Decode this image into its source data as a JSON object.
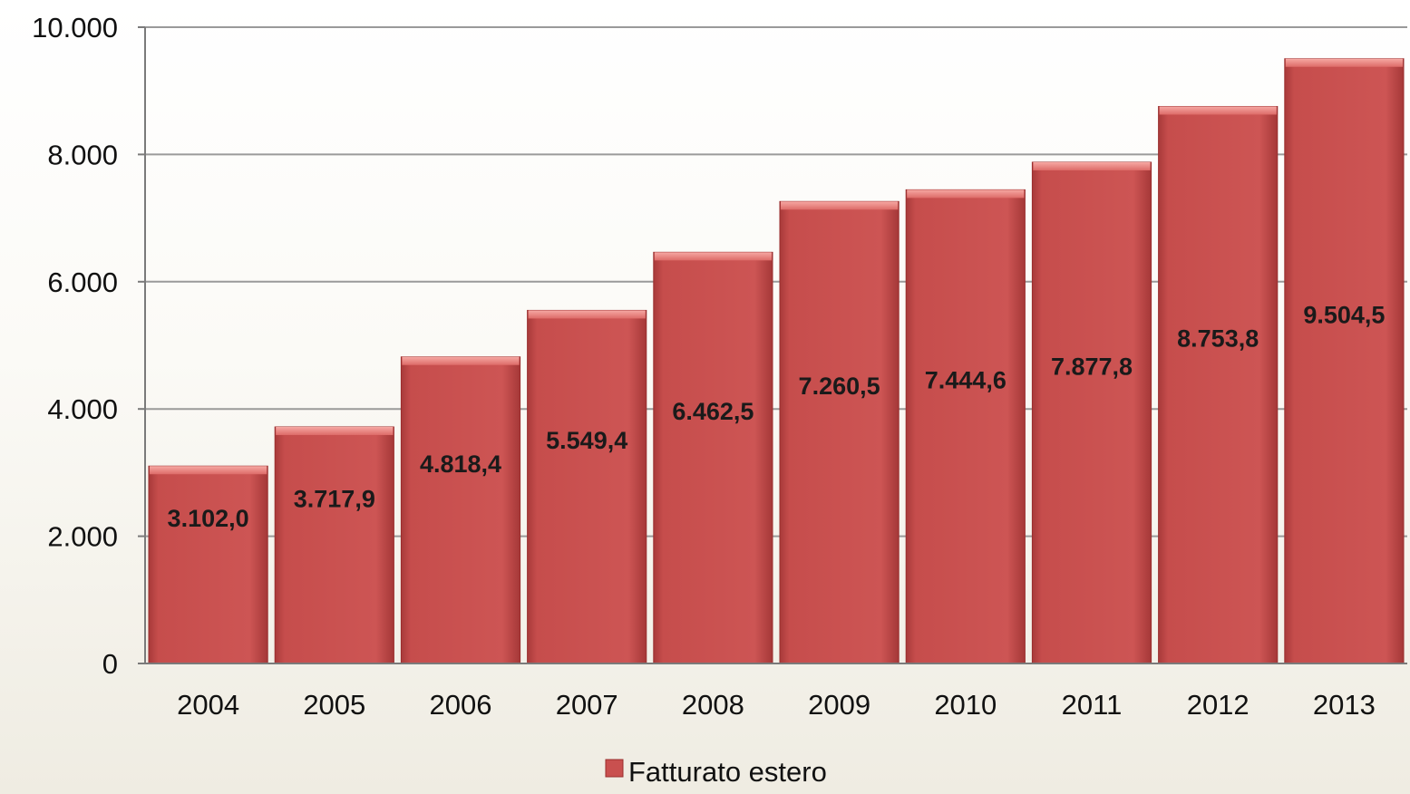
{
  "chart_data": {
    "type": "bar",
    "categories": [
      "2004",
      "2005",
      "2006",
      "2007",
      "2008",
      "2009",
      "2010",
      "2011",
      "2012",
      "2013"
    ],
    "series": [
      {
        "name": "Fatturato estero",
        "values": [
          3102.0,
          3717.9,
          4818.4,
          5549.4,
          6462.5,
          7260.5,
          7444.6,
          7877.8,
          8753.8,
          9504.5
        ],
        "data_labels": [
          "3.102,0",
          "3.717,9",
          "4.818,4",
          "5.549,4",
          "6.462,5",
          "7.260,5",
          "7.444,6",
          "7.877,8",
          "8.753,8",
          "9.504,5"
        ]
      }
    ],
    "ylim": [
      0,
      10000
    ],
    "yticks": [
      0,
      2000,
      4000,
      6000,
      8000,
      10000
    ],
    "ytick_labels": [
      "0",
      "2.000",
      "4.000",
      "6.000",
      "8.000",
      "10.000"
    ],
    "grid": true,
    "legend_position": "bottom",
    "title": "",
    "xlabel": "",
    "ylabel": ""
  },
  "colors": {
    "bar_fill": "#c9504f",
    "bar_top": "#ef8e8a",
    "bar_edge": "#9a2e2e",
    "gridline": "#9a9a9a",
    "axis": "#7a7a7a"
  }
}
